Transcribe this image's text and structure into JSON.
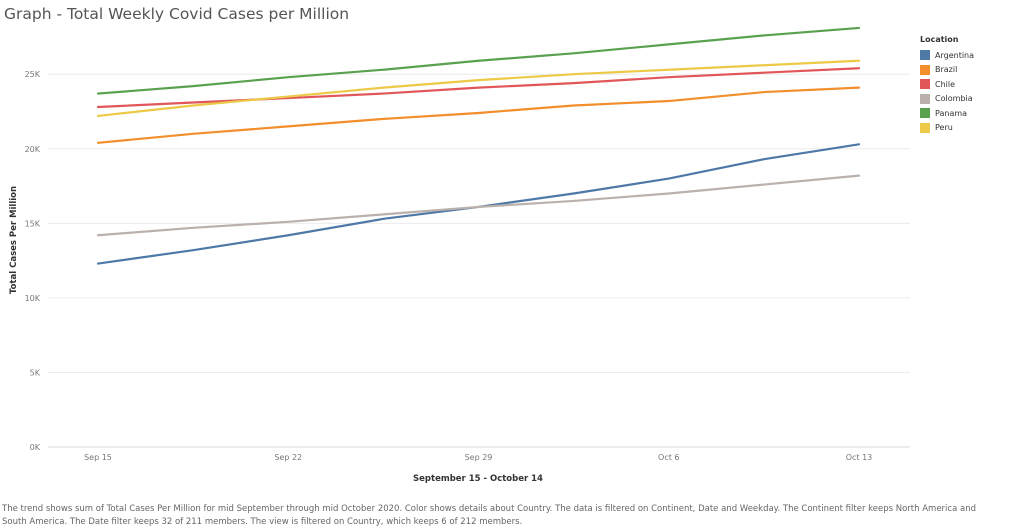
{
  "title": "Graph - Total Weekly Covid Cases per Million",
  "caption": "The trend shows sum of Total Cases Per Million for mid September through mid October 2020.  Color shows details about Country. The data is filtered on Continent, Date and Weekday. The Continent filter keeps North America and South America. The Date filter keeps 32 of 211 members. The view is filtered on Country, which keeps 6 of 212 members.",
  "chart_data": {
    "type": "line",
    "title": "Graph - Total Weekly Covid Cases per Million",
    "xlabel": "September 15 - October 14",
    "ylabel": "Total Cases Per Million",
    "x": [
      "Sep 15",
      "Sep 18",
      "Sep 22",
      "Sep 25",
      "Sep 29",
      "Oct 2",
      "Oct 6",
      "Oct 9",
      "Oct 13"
    ],
    "x_ticks": [
      "Sep 15",
      "Sep 22",
      "Sep 29",
      "Oct 6",
      "Oct 13"
    ],
    "y_ticks": [
      0,
      5000,
      10000,
      15000,
      20000,
      25000
    ],
    "y_tick_labels": [
      "0K",
      "5K",
      "10K",
      "15K",
      "20K",
      "25K"
    ],
    "ylim": [
      0,
      28500
    ],
    "grid": true,
    "legend_title": "Location",
    "legend_position": "right",
    "series": [
      {
        "name": "Argentina",
        "color": "#4e79a7",
        "values": [
          12300,
          13200,
          14200,
          15300,
          16100,
          17000,
          18000,
          19300,
          20300
        ]
      },
      {
        "name": "Brazil",
        "color": "#f28e2b",
        "values": [
          20400,
          21000,
          21500,
          22000,
          22400,
          22900,
          23200,
          23800,
          24100
        ]
      },
      {
        "name": "Chile",
        "color": "#e15759",
        "values": [
          22800,
          23100,
          23400,
          23700,
          24100,
          24400,
          24800,
          25100,
          25400
        ]
      },
      {
        "name": "Colombia",
        "color": "#bab0ac",
        "values": [
          14200,
          14700,
          15100,
          15600,
          16100,
          16500,
          17000,
          17600,
          18200
        ]
      },
      {
        "name": "Panama",
        "color": "#59a14f",
        "values": [
          23700,
          24200,
          24800,
          25300,
          25900,
          26400,
          27000,
          27600,
          28100
        ]
      },
      {
        "name": "Peru",
        "color": "#edc948",
        "values": [
          22200,
          22900,
          23500,
          24100,
          24600,
          25000,
          25300,
          25600,
          25900
        ]
      }
    ]
  }
}
